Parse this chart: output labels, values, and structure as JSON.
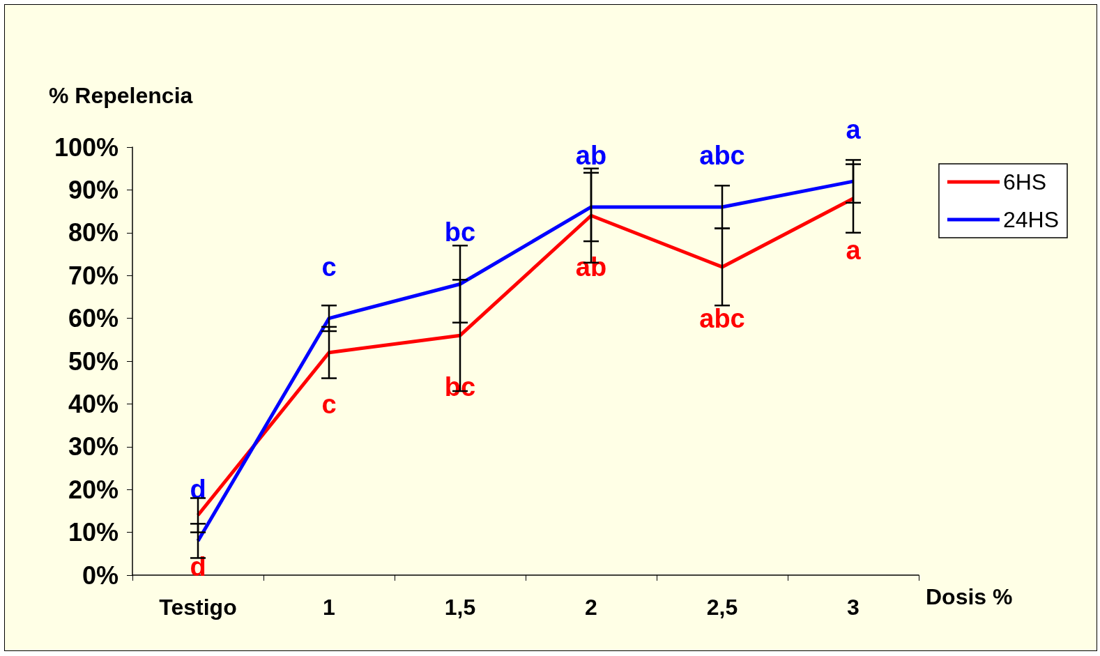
{
  "chart_data": {
    "type": "line",
    "xlabel": "Dosis %",
    "ylabel": "% Repelencia",
    "categories": [
      "Testigo",
      "1",
      "1,5",
      "2",
      "2,5",
      "3"
    ],
    "ylim": [
      0,
      100
    ],
    "yticks": [
      {
        "value": 0,
        "label": "0%"
      },
      {
        "value": 10,
        "label": "10%"
      },
      {
        "value": 20,
        "label": "20%"
      },
      {
        "value": 30,
        "label": "30%"
      },
      {
        "value": 40,
        "label": "40%"
      },
      {
        "value": 50,
        "label": "50%"
      },
      {
        "value": 60,
        "label": "60%"
      },
      {
        "value": 70,
        "label": "70%"
      },
      {
        "value": 80,
        "label": "80%"
      },
      {
        "value": 90,
        "label": "90%"
      },
      {
        "value": 100,
        "label": "100%"
      }
    ],
    "series": [
      {
        "name": "6HS",
        "color": "#ff0000",
        "values": [
          14,
          52,
          56,
          84,
          72,
          88
        ],
        "errors": [
          4,
          6,
          13,
          11,
          9,
          8
        ],
        "value_labels": [
          "d",
          "c",
          "bc",
          "ab",
          "abc",
          "a"
        ]
      },
      {
        "name": "24HS",
        "color": "#0000ff",
        "values": [
          8,
          60,
          68,
          86,
          86,
          92
        ],
        "errors": [
          4,
          3,
          9,
          8,
          5,
          5
        ],
        "value_labels": [
          "d",
          "c",
          "bc",
          "ab",
          "abc",
          "a"
        ]
      }
    ],
    "grid": false,
    "legend": "right",
    "marker": "none",
    "line_style": "solid"
  }
}
